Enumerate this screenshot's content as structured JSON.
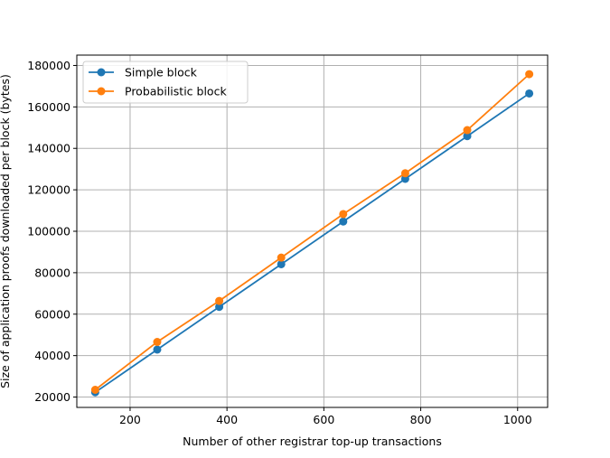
{
  "chart_data": {
    "type": "line",
    "title": "",
    "xlabel": "Number of other registrar top-up transactions",
    "ylabel": "Size of application proofs downloaded per block (bytes)",
    "xlim": [
      90,
      1062
    ],
    "ylim": [
      15000,
      185000
    ],
    "x_ticks": [
      200,
      400,
      600,
      800,
      1000
    ],
    "y_ticks": [
      20000,
      40000,
      60000,
      80000,
      100000,
      120000,
      140000,
      160000,
      180000
    ],
    "grid": true,
    "legend_position": "upper-left",
    "x": [
      128,
      256,
      384,
      512,
      640,
      768,
      896,
      1024
    ],
    "series": [
      {
        "name": "Simple block",
        "color": "#1f77b4",
        "marker": "circle",
        "values": [
          22300,
          42900,
          63500,
          84100,
          104700,
          125300,
          145900,
          166500
        ]
      },
      {
        "name": "Probabilistic block",
        "color": "#ff7f0e",
        "marker": "circle",
        "values": [
          23500,
          46600,
          66400,
          87300,
          108300,
          128000,
          148800,
          175800
        ]
      }
    ]
  }
}
